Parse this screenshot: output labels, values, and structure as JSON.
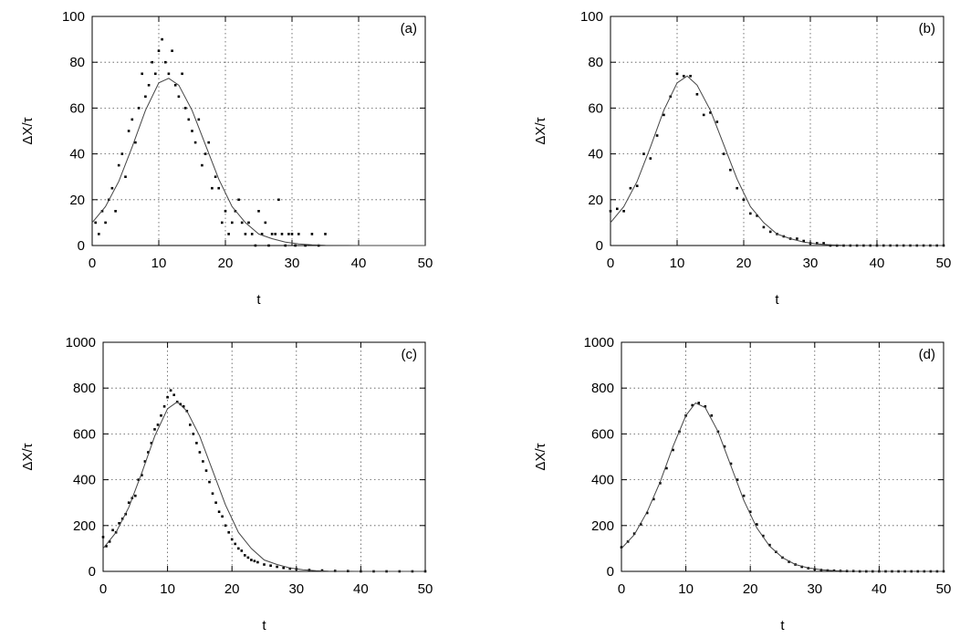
{
  "chart_data": [
    {
      "panel": "(a)",
      "type": "scatter",
      "xlabel": "t",
      "ylabel": "ΔX/τ",
      "xlim": [
        0,
        50
      ],
      "ylim": [
        0,
        100
      ],
      "xticks": [
        "0",
        "10",
        "20",
        "30",
        "40",
        "50"
      ],
      "yticks": [
        "0",
        "20",
        "40",
        "60",
        "80",
        "100"
      ],
      "grid": true,
      "series": [
        {
          "kind": "points",
          "x": [
            0.5,
            1,
            1.5,
            2,
            2.5,
            3,
            3.5,
            4,
            4.5,
            5,
            5.5,
            6,
            6.5,
            7,
            7.5,
            8,
            8.5,
            9,
            9.5,
            10,
            10.5,
            11,
            11.5,
            12,
            12.5,
            13,
            13.5,
            14,
            14.5,
            15,
            15.5,
            16,
            16.5,
            17,
            17.5,
            18,
            18.5,
            19,
            19.5,
            20,
            20.5,
            21,
            21.5,
            22,
            22.5,
            23,
            23.5,
            24,
            24.5,
            25,
            25.5,
            26,
            26.5,
            27,
            27.5,
            28,
            28.5,
            29,
            29.5,
            30,
            30.5,
            31,
            32,
            33,
            34,
            35
          ],
          "y": [
            10,
            5,
            15,
            10,
            20,
            25,
            15,
            35,
            40,
            30,
            50,
            55,
            45,
            60,
            75,
            65,
            70,
            80,
            75,
            85,
            90,
            80,
            75,
            85,
            70,
            65,
            75,
            60,
            55,
            50,
            45,
            55,
            35,
            40,
            45,
            25,
            30,
            25,
            10,
            15,
            5,
            10,
            15,
            20,
            10,
            5,
            10,
            5,
            0,
            15,
            5,
            10,
            0,
            5,
            5,
            20,
            5,
            0,
            5,
            5,
            0,
            5,
            0,
            5,
            0,
            5
          ]
        },
        {
          "kind": "curve",
          "x": [
            0,
            2,
            4,
            6,
            8,
            10,
            11.5,
            13,
            15,
            17,
            19,
            21,
            23,
            25,
            27,
            29,
            31,
            33,
            35,
            40,
            45,
            50
          ],
          "y": [
            10,
            17,
            28,
            43,
            59,
            71,
            73,
            70,
            59,
            44,
            29,
            17,
            10,
            5,
            3,
            1.5,
            0.7,
            0.3,
            0.1,
            0,
            0,
            0
          ]
        }
      ]
    },
    {
      "panel": "(b)",
      "type": "scatter",
      "xlabel": "t",
      "ylabel": "ΔX/τ",
      "xlim": [
        0,
        50
      ],
      "ylim": [
        0,
        100
      ],
      "xticks": [
        "0",
        "10",
        "20",
        "30",
        "40",
        "50"
      ],
      "yticks": [
        "0",
        "20",
        "40",
        "60",
        "80",
        "100"
      ],
      "grid": true,
      "series": [
        {
          "kind": "points",
          "x": [
            0,
            1,
            2,
            3,
            4,
            5,
            6,
            7,
            8,
            9,
            10,
            11,
            12,
            13,
            14,
            15,
            16,
            17,
            18,
            19,
            20,
            21,
            22,
            23,
            24,
            25,
            26,
            27,
            28,
            29,
            30,
            31,
            32,
            33,
            34,
            35,
            36,
            37,
            38,
            39,
            40,
            41,
            42,
            43,
            44,
            45,
            46,
            47,
            48,
            49,
            50
          ],
          "y": [
            15,
            16,
            15,
            25,
            26,
            40,
            38,
            48,
            57,
            65,
            75,
            74,
            74,
            66,
            57,
            58,
            54,
            40,
            33,
            25,
            20,
            14,
            13,
            8,
            6,
            5,
            4,
            3,
            3,
            2,
            1,
            1,
            1,
            0,
            0,
            0,
            0,
            0,
            0,
            0,
            0,
            0,
            0,
            0,
            0,
            0,
            0,
            0,
            0,
            0,
            0
          ]
        },
        {
          "kind": "curve",
          "x": [
            0,
            2,
            4,
            6,
            8,
            10,
            11.5,
            13,
            15,
            17,
            19,
            21,
            23,
            25,
            27,
            29,
            31,
            33,
            35,
            40,
            45,
            50
          ],
          "y": [
            10,
            17,
            28,
            43,
            59,
            71,
            74,
            70,
            59,
            44,
            29,
            17,
            10,
            5,
            3,
            1.5,
            0.7,
            0.3,
            0.1,
            0,
            0,
            0
          ]
        }
      ]
    },
    {
      "panel": "(c)",
      "type": "scatter",
      "xlabel": "t",
      "ylabel": "ΔX/τ",
      "xlim": [
        0,
        50
      ],
      "ylim": [
        0,
        1000
      ],
      "xticks": [
        "0",
        "10",
        "20",
        "30",
        "40",
        "50"
      ],
      "yticks": [
        "0",
        "200",
        "400",
        "600",
        "800",
        "1000"
      ],
      "grid": true,
      "series": [
        {
          "kind": "points",
          "x": [
            0,
            0.5,
            1,
            1.5,
            2,
            2.5,
            3,
            3.5,
            4,
            4.5,
            5,
            5.5,
            6,
            6.5,
            7,
            7.5,
            8,
            8.5,
            9,
            9.5,
            10,
            10.5,
            11,
            11.5,
            12,
            12.5,
            13,
            13.5,
            14,
            14.5,
            15,
            15.5,
            16,
            16.5,
            17,
            17.5,
            18,
            18.5,
            19,
            19.5,
            20,
            20.5,
            21,
            21.5,
            22,
            22.5,
            23,
            23.5,
            24,
            25,
            26,
            27,
            28,
            29,
            30,
            32,
            34,
            36,
            38,
            40,
            42,
            44,
            46,
            48,
            50
          ],
          "y": [
            150,
            110,
            130,
            180,
            170,
            210,
            230,
            250,
            300,
            320,
            330,
            400,
            420,
            480,
            520,
            560,
            620,
            640,
            680,
            720,
            760,
            790,
            770,
            740,
            730,
            720,
            700,
            640,
            600,
            560,
            520,
            480,
            440,
            390,
            340,
            300,
            260,
            240,
            200,
            170,
            140,
            120,
            100,
            90,
            70,
            60,
            50,
            45,
            40,
            30,
            25,
            20,
            15,
            12,
            10,
            6,
            4,
            2,
            1,
            0,
            0,
            0,
            0,
            0,
            0
          ]
        },
        {
          "kind": "curve",
          "x": [
            0,
            2,
            4,
            6,
            8,
            10,
            11.5,
            13,
            15,
            17,
            19,
            21,
            23,
            25,
            27,
            29,
            31,
            33,
            35,
            40,
            45,
            50
          ],
          "y": [
            100,
            170,
            280,
            430,
            590,
            710,
            740,
            700,
            590,
            440,
            290,
            170,
            100,
            50,
            30,
            15,
            7,
            3,
            1,
            0,
            0,
            0
          ]
        }
      ]
    },
    {
      "panel": "(d)",
      "type": "scatter",
      "xlabel": "t",
      "ylabel": "ΔX/τ",
      "xlim": [
        0,
        50
      ],
      "ylim": [
        0,
        1000
      ],
      "xticks": [
        "0",
        "10",
        "20",
        "30",
        "40",
        "50"
      ],
      "yticks": [
        "0",
        "200",
        "400",
        "600",
        "800",
        "1000"
      ],
      "grid": true,
      "series": [
        {
          "kind": "points",
          "x": [
            0,
            1,
            2,
            3,
            4,
            5,
            6,
            7,
            8,
            9,
            10,
            11,
            12,
            13,
            14,
            15,
            16,
            17,
            18,
            19,
            20,
            21,
            22,
            23,
            24,
            25,
            26,
            27,
            28,
            29,
            30,
            31,
            32,
            33,
            34,
            35,
            36,
            37,
            38,
            39,
            40,
            41,
            42,
            43,
            44,
            45,
            46,
            47,
            48,
            49,
            50
          ],
          "y": [
            105,
            130,
            165,
            205,
            255,
            315,
            385,
            450,
            530,
            610,
            680,
            725,
            735,
            720,
            680,
            610,
            545,
            470,
            400,
            330,
            260,
            205,
            155,
            115,
            85,
            60,
            42,
            30,
            20,
            14,
            9,
            6,
            4,
            3,
            2,
            1,
            1,
            0,
            0,
            0,
            0,
            0,
            0,
            0,
            0,
            0,
            0,
            0,
            0,
            0,
            0
          ]
        },
        {
          "kind": "curve",
          "x": [
            0,
            2,
            4,
            6,
            8,
            10,
            11.5,
            13,
            15,
            17,
            19,
            21,
            23,
            25,
            27,
            29,
            31,
            33,
            35,
            40,
            45,
            50
          ],
          "y": [
            100,
            160,
            260,
            390,
            545,
            680,
            735,
            715,
            610,
            460,
            310,
            190,
            110,
            60,
            30,
            15,
            7,
            3,
            1,
            0,
            0,
            0
          ]
        }
      ]
    }
  ]
}
